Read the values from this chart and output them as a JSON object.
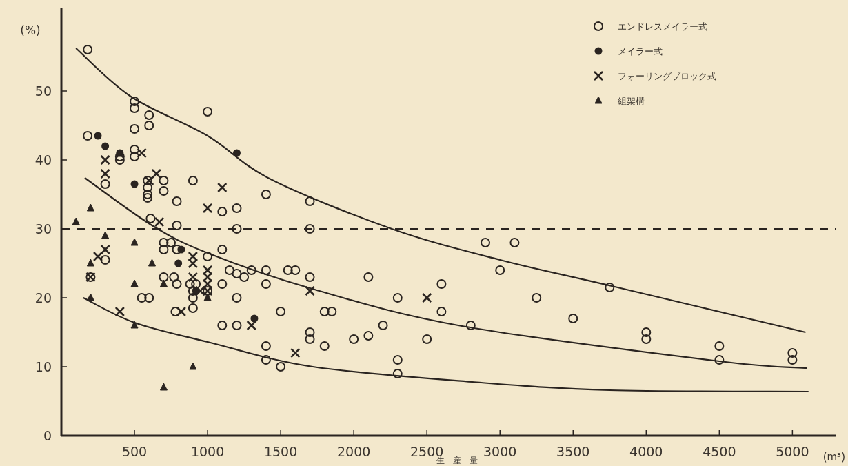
{
  "chart_data": {
    "type": "scatter",
    "ylabel": "(%)",
    "xlabel": "生　産　量",
    "annotations": [
      "(m³)"
    ],
    "xlim": [
      0,
      5300
    ],
    "ylim": [
      0,
      62
    ],
    "xticks": [
      500,
      1000,
      1500,
      2000,
      2500,
      3000,
      3500,
      4000,
      4500,
      5000
    ],
    "yticks": [
      0,
      10,
      20,
      30,
      40,
      50
    ],
    "grid": false,
    "legend": "top right",
    "ref_lines": [
      {
        "axis": "y",
        "value": 30,
        "line_style": "dashed"
      }
    ],
    "series": [
      {
        "name": "エンドレスメイラー式",
        "color": "#2a2420",
        "marker": "circle",
        "x": [
          180,
          180,
          200,
          300,
          300,
          400,
          400,
          500,
          500,
          500,
          500,
          500,
          600,
          600,
          590,
          590,
          590,
          590,
          610,
          550,
          600,
          700,
          700,
          700,
          750,
          700,
          700,
          790,
          790,
          790,
          770,
          790,
          780,
          900,
          880,
          900,
          900,
          900,
          920,
          1000,
          1000,
          1000,
          1100,
          1100,
          1100,
          1100,
          1200,
          1200,
          1150,
          1200,
          1250,
          1200,
          1200,
          1300,
          1400,
          1400,
          1400,
          1400,
          1400,
          1500,
          1500,
          1550,
          1600,
          1700,
          1700,
          1700,
          1700,
          1700,
          1800,
          1850,
          1800,
          2000,
          2100,
          2100,
          2200,
          2300,
          2300,
          2300,
          2500,
          2600,
          2600,
          2800,
          2900,
          3000,
          3100,
          3250,
          3500,
          3750,
          4000,
          4000,
          4500,
          4500,
          5000,
          5000
        ],
        "values": [
          56,
          43.5,
          23,
          36.5,
          25.5,
          40.5,
          40,
          48.5,
          47.5,
          44.5,
          41.5,
          40.5,
          46.5,
          45,
          37,
          36,
          35,
          34.5,
          31.5,
          20,
          20,
          37,
          35.5,
          28,
          28,
          27,
          23,
          34,
          30.5,
          27,
          23,
          22,
          18,
          37,
          22,
          21,
          20,
          18.5,
          22,
          47,
          26,
          21,
          32.5,
          27,
          22,
          16,
          33,
          30,
          24,
          23.5,
          23,
          20,
          16,
          24,
          35,
          24,
          22,
          13,
          11,
          18,
          10,
          24,
          24,
          34,
          30,
          23,
          15,
          14,
          18,
          18,
          13,
          14,
          23,
          14.5,
          16,
          20,
          11,
          9,
          14,
          22,
          18,
          16,
          28,
          24,
          28,
          20,
          17,
          21.5,
          15,
          14,
          13,
          11,
          12,
          11
        ]
      },
      {
        "name": "メイラー式",
        "color": "#2a2420",
        "marker": "circle",
        "x": [
          250,
          300,
          400,
          500,
          820,
          800,
          920,
          1200,
          1320
        ],
        "values": [
          43.5,
          42,
          41,
          36.5,
          27,
          25,
          21,
          41,
          17
        ]
      },
      {
        "name": "フォーリングブロック式",
        "color": "#2a2420",
        "marker": "cross",
        "x": [
          300,
          300,
          250,
          300,
          200,
          400,
          550,
          600,
          650,
          670,
          900,
          900,
          900,
          950,
          1000,
          1000,
          1000,
          1000,
          820,
          1000,
          1100,
          1300,
          1600,
          1700,
          2500
        ],
        "values": [
          40,
          38,
          26,
          27,
          23,
          18,
          41,
          37,
          38,
          31,
          26,
          25,
          23,
          21,
          24,
          23,
          22,
          21,
          18,
          33,
          36,
          16,
          12,
          21,
          20
        ]
      },
      {
        "name": "組架構",
        "color": "#2a2420",
        "marker": "triangle",
        "x": [
          100,
          200,
          300,
          200,
          200,
          500,
          500,
          620,
          700,
          900,
          700,
          500,
          1000
        ],
        "values": [
          31,
          33,
          29,
          25,
          20,
          28,
          22,
          25,
          22,
          10,
          7,
          16,
          20
        ]
      },
      {
        "type": "line",
        "color": "#2a2420",
        "marker": "none",
        "x": [
          100,
          475,
          1000,
          1432,
          2260,
          3000,
          3765,
          5090
        ],
        "values": [
          56.2,
          49.2,
          43.5,
          37.2,
          30,
          25.5,
          21.7,
          15
        ]
      },
      {
        "type": "line",
        "color": "#2a2420",
        "marker": "none",
        "x": [
          160,
          620,
          1000,
          1700,
          2740,
          4500,
          5100
        ],
        "values": [
          37.4,
          30.5,
          26.5,
          21.4,
          15.9,
          10.8,
          9.8
        ]
      },
      {
        "type": "line",
        "color": "#2a2420",
        "marker": "none",
        "x": [
          150,
          500,
          1000,
          1720,
          2810,
          3750,
          5110
        ],
        "values": [
          20,
          16.4,
          13.6,
          10,
          7.8,
          6.6,
          6.4
        ]
      }
    ]
  }
}
